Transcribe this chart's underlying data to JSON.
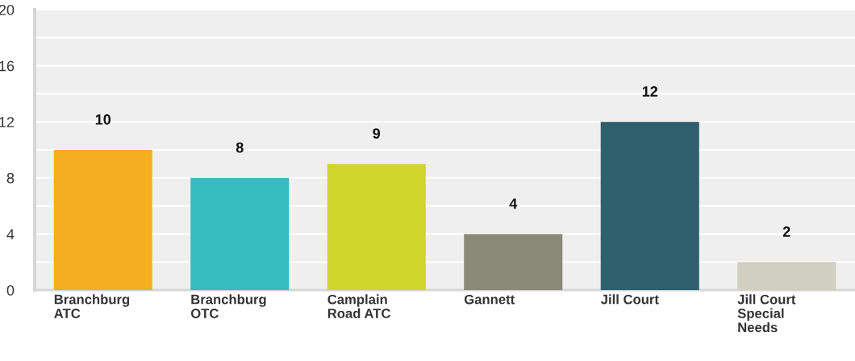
{
  "chart_data": {
    "type": "bar",
    "categories": [
      "Branchburg\nATC",
      "Branchburg\nOTC",
      "Camplain\nRoad ATC",
      "Gannett",
      "Jill Court",
      "Jill Court\nSpecial\nNeeds"
    ],
    "values": [
      10,
      8,
      9,
      4,
      12,
      2
    ],
    "colors": [
      "#f5ae20",
      "#34bcbf",
      "#cfd52a",
      "#8a8a78",
      "#2f5f6c",
      "#d0cfc0"
    ],
    "ylim": [
      0,
      20
    ],
    "yticks": [
      0,
      {
        "value": 2,
        "label": null
      },
      4,
      {
        "value": 6,
        "label": null
      },
      8,
      {
        "value": 10,
        "label": null
      },
      12,
      {
        "value": 14,
        "label": null
      },
      16,
      {
        "value": 18,
        "label": null
      },
      20
    ],
    "grid": "y",
    "data_labels": true
  }
}
